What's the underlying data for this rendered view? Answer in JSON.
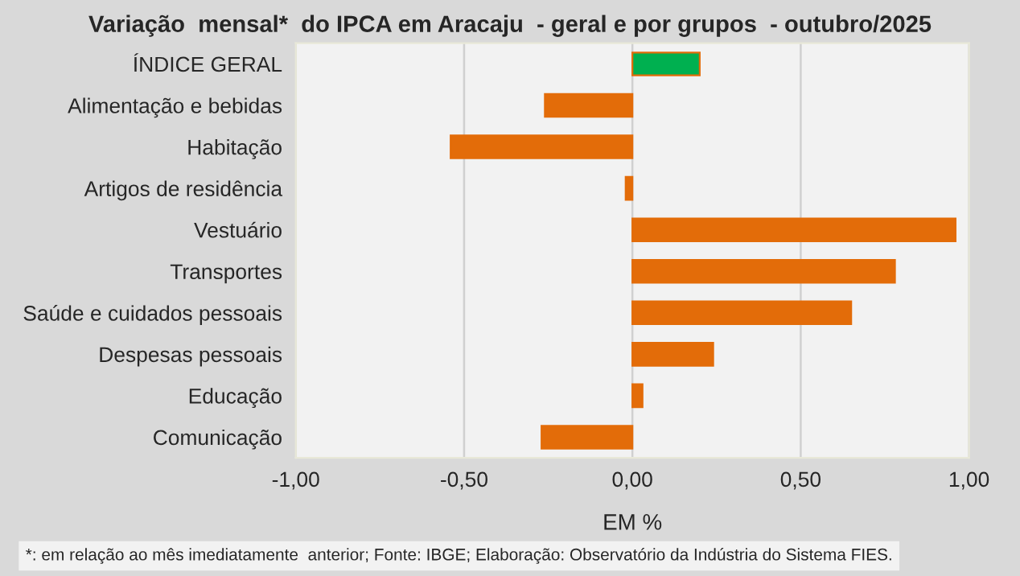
{
  "chart_data": {
    "type": "bar",
    "orientation": "horizontal",
    "title": "Variação  mensal*  do IPCA em Aracaju  - geral e por grupos  - outubro/2025",
    "xlabel": "EM %",
    "categories": [
      "ÍNDICE GERAL",
      "Alimentação e bebidas",
      "Habitação",
      "Artigos de residência",
      "Vestuário",
      "Transportes",
      "Saúde e cuidados pessoais",
      "Despesas pessoais",
      "Educação",
      "Comunicação"
    ],
    "values": [
      0.2,
      -0.26,
      -0.54,
      -0.02,
      0.96,
      0.78,
      0.65,
      0.24,
      0.03,
      -0.27
    ],
    "colors": [
      "#00b050",
      "#e36c09",
      "#e36c09",
      "#e36c09",
      "#e36c09",
      "#e36c09",
      "#e36c09",
      "#e36c09",
      "#e36c09",
      "#e36c09"
    ],
    "xlim": [
      -1,
      1
    ],
    "xticks": [
      {
        "value": -1,
        "label": "-1,00"
      },
      {
        "value": -0.5,
        "label": "-0,50"
      },
      {
        "value": 0,
        "label": "0,00"
      },
      {
        "value": 0.5,
        "label": "0,50"
      },
      {
        "value": 1,
        "label": "1,00"
      }
    ],
    "grid": "x",
    "legend": false,
    "annotations": [
      "*: em relação ao mês imediatamente  anterior; Fonte: IBGE; Elaboração: Observatório da Indústria do Sistema FIES."
    ]
  }
}
